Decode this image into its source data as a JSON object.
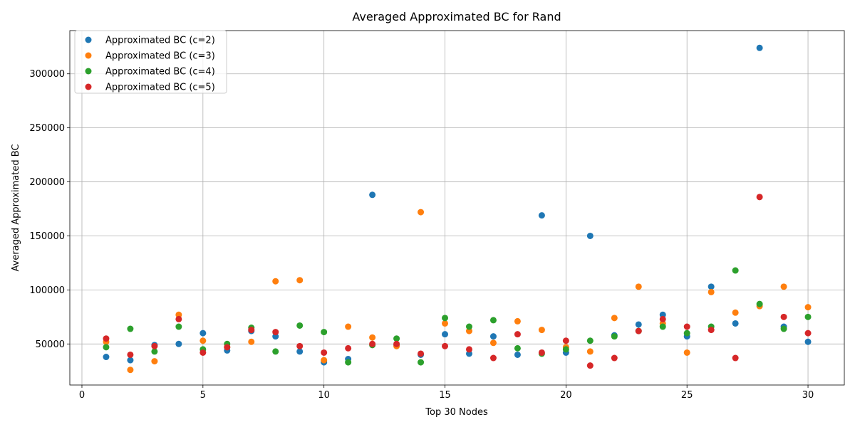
{
  "chart_data": {
    "type": "scatter",
    "title": "Averaged Approximated BC for Rand",
    "xlabel": "Top 30 Nodes",
    "ylabel": "Averaged Approximated BC",
    "xlim": [
      -0.5,
      31.5
    ],
    "ylim": [
      12000,
      340000
    ],
    "xticks": [
      0,
      5,
      10,
      15,
      20,
      25,
      30
    ],
    "yticks": [
      50000,
      100000,
      150000,
      200000,
      250000,
      300000
    ],
    "grid": true,
    "legend_position": "upper-left",
    "series": [
      {
        "name": "Approximated BC (c=2)",
        "color": "#1f77b4",
        "x": [
          1,
          2,
          3,
          4,
          5,
          6,
          7,
          8,
          9,
          10,
          11,
          12,
          13,
          14,
          15,
          16,
          17,
          18,
          19,
          20,
          21,
          22,
          23,
          24,
          25,
          26,
          27,
          28,
          29,
          30
        ],
        "y": [
          38000,
          35000,
          49000,
          50000,
          60000,
          44000,
          62000,
          57000,
          43000,
          33000,
          36000,
          188000,
          49000,
          40000,
          59000,
          41000,
          57000,
          40000,
          169000,
          42000,
          150000,
          58000,
          68000,
          77000,
          57000,
          103000,
          69000,
          324000,
          66000,
          52000
        ]
      },
      {
        "name": "Approximated BC (c=3)",
        "color": "#ff7f0e",
        "x": [
          1,
          2,
          3,
          4,
          5,
          6,
          7,
          8,
          9,
          10,
          11,
          12,
          13,
          14,
          15,
          16,
          17,
          18,
          19,
          20,
          21,
          22,
          23,
          24,
          25,
          26,
          27,
          28,
          29,
          30
        ],
        "y": [
          52000,
          26000,
          34000,
          77000,
          53000,
          47000,
          52000,
          108000,
          109000,
          35000,
          66000,
          56000,
          48000,
          172000,
          69000,
          62000,
          51000,
          71000,
          63000,
          47000,
          43000,
          74000,
          103000,
          69000,
          42000,
          98000,
          79000,
          85000,
          103000,
          84000
        ]
      },
      {
        "name": "Approximated BC (c=4)",
        "color": "#2ca02c",
        "x": [
          1,
          2,
          3,
          4,
          5,
          6,
          7,
          8,
          9,
          10,
          11,
          12,
          13,
          14,
          15,
          16,
          17,
          18,
          19,
          20,
          21,
          22,
          23,
          24,
          25,
          26,
          27,
          28,
          29,
          30
        ],
        "y": [
          47000,
          64000,
          43000,
          66000,
          45000,
          50000,
          65000,
          43000,
          67000,
          61000,
          33000,
          49000,
          55000,
          33000,
          74000,
          66000,
          72000,
          46000,
          41000,
          45000,
          53000,
          57000,
          62000,
          66000,
          60000,
          66000,
          118000,
          87000,
          64000,
          75000
        ]
      },
      {
        "name": "Approximated BC (c=5)",
        "color": "#d62728",
        "x": [
          1,
          2,
          3,
          4,
          5,
          6,
          7,
          8,
          9,
          10,
          11,
          12,
          13,
          14,
          15,
          16,
          17,
          18,
          19,
          20,
          21,
          22,
          23,
          24,
          25,
          26,
          27,
          28,
          29,
          30
        ],
        "y": [
          55000,
          40000,
          48000,
          73000,
          42000,
          47000,
          63000,
          61000,
          48000,
          42000,
          46000,
          50000,
          50000,
          41000,
          48000,
          45000,
          37000,
          59000,
          42000,
          53000,
          30000,
          37000,
          62000,
          73000,
          66000,
          63000,
          37000,
          186000,
          75000,
          60000
        ]
      }
    ]
  }
}
